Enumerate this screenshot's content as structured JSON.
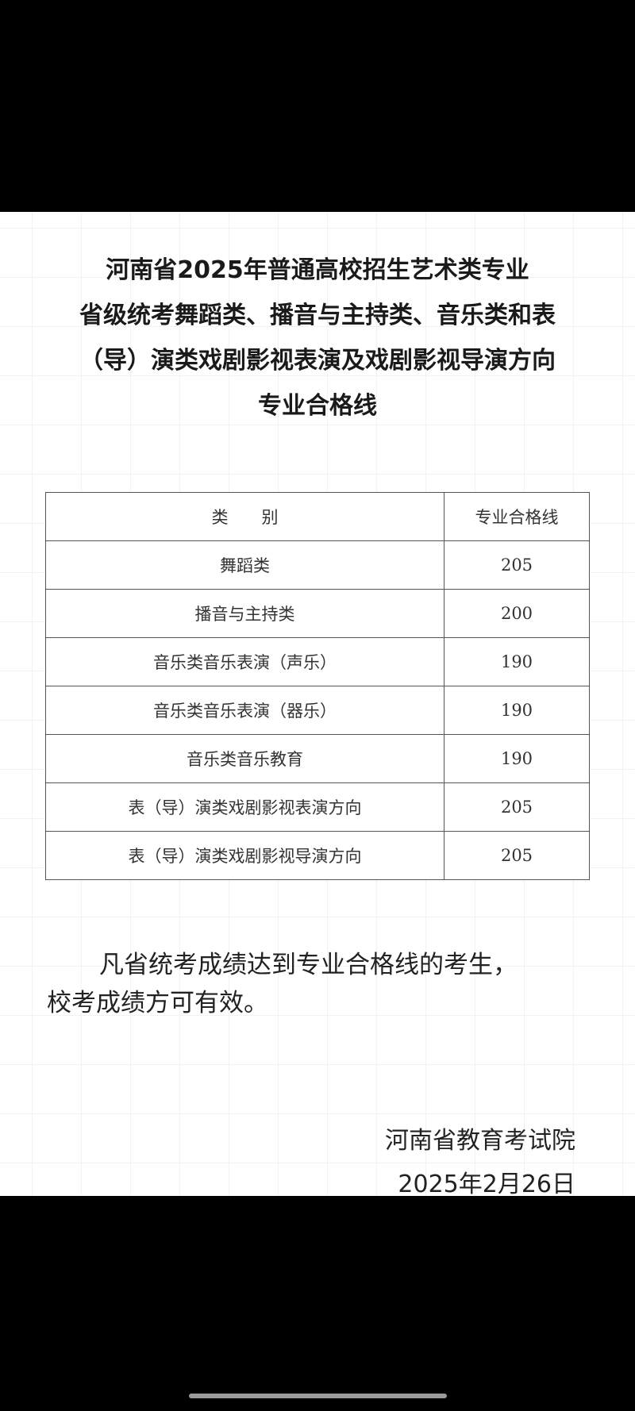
{
  "title_lines": [
    "河南省2025年普通高校招生艺术类专业",
    "省级统考舞蹈类、播音与主持类、音乐类和表",
    "（导）演类戏剧影视表演及戏剧影视导演方向",
    "专业合格线"
  ],
  "table": {
    "headers": [
      "类　　别",
      "专业合格线"
    ],
    "rows": [
      {
        "category": "舞蹈类",
        "score": "205"
      },
      {
        "category": "播音与主持类",
        "score": "200"
      },
      {
        "category": "音乐类音乐表演（声乐）",
        "score": "190"
      },
      {
        "category": "音乐类音乐表演（器乐）",
        "score": "190"
      },
      {
        "category": "音乐类音乐教育",
        "score": "190"
      },
      {
        "category": "表（导）演类戏剧影视表演方向",
        "score": "205"
      },
      {
        "category": "表（导）演类戏剧影视导演方向",
        "score": "205"
      }
    ]
  },
  "notice": {
    "line1": "凡省统考成绩达到专业合格线的考生，",
    "line2": "校考成绩方可有效。"
  },
  "signature": {
    "issuer": "河南省教育考试院",
    "date": "2025年2月26日"
  }
}
